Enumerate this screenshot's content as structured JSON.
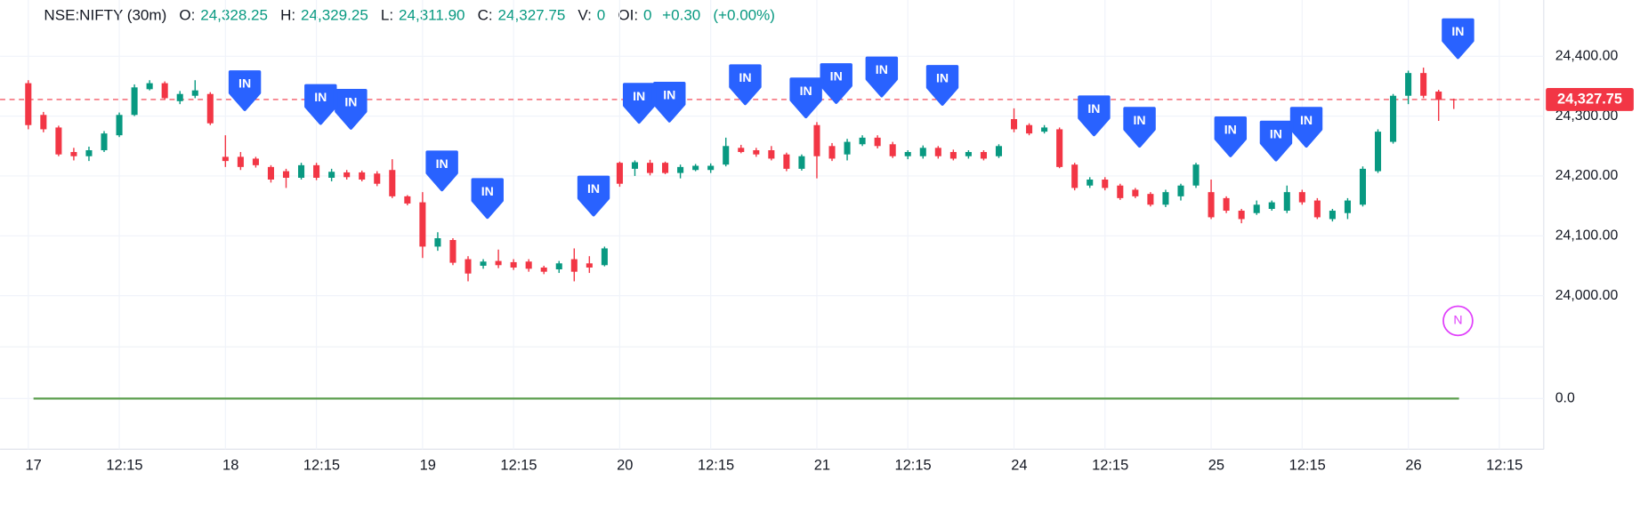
{
  "chart_data": {
    "type": "candlestick",
    "legend": {
      "symbol": "NSE:NIFTY (30m)",
      "fields": [
        {
          "key": "O:",
          "value": "24,328.25"
        },
        {
          "key": "H:",
          "value": "24,329.25"
        },
        {
          "key": "L:",
          "value": "24,311.90"
        },
        {
          "key": "C:",
          "value": "24,327.75"
        },
        {
          "key": "V:",
          "value": "0"
        },
        {
          "key": "OI:",
          "value": "0"
        }
      ],
      "change": "+0.30",
      "change_percent": "(+0.00%)"
    },
    "categories": [
      "17",
      null,
      null,
      null,
      null,
      null,
      "12:15",
      null,
      null,
      null,
      null,
      null,
      null,
      "18",
      null,
      null,
      null,
      null,
      null,
      "12:15",
      null,
      null,
      null,
      null,
      null,
      null,
      "19",
      null,
      null,
      null,
      null,
      null,
      "12:15",
      null,
      null,
      null,
      null,
      null,
      null,
      "20",
      null,
      null,
      null,
      null,
      null,
      "12:15",
      null,
      null,
      null,
      null,
      null,
      null,
      "21",
      null,
      null,
      null,
      null,
      null,
      "12:15",
      null,
      null,
      null,
      null,
      null,
      null,
      "24",
      null,
      null,
      null,
      null,
      null,
      "12:15",
      null,
      null,
      null,
      null,
      null,
      null,
      "25",
      null,
      null,
      null,
      null,
      null,
      "12:15",
      null,
      null,
      null,
      null,
      null,
      null,
      "26",
      null,
      null,
      null,
      null,
      null,
      "12:15"
    ],
    "open": [
      24355,
      24302,
      24281,
      24240,
      24233,
      24243,
      24268,
      24302,
      24345,
      24355,
      24325,
      24334,
      24337,
      24232,
      24232,
      24229,
      24215,
      24208,
      24197,
      24218,
      24197,
      24206,
      24206,
      24204,
      24210,
      24166,
      24156,
      24082,
      24093,
      24061,
      24050,
      24058,
      24056,
      24057,
      24047,
      24044,
      24061,
      24054,
      24051,
      24222,
      24212,
      24222,
      24222,
      24205,
      24210,
      24210,
      24219,
      24247,
      24243,
      24243,
      24236,
      24212,
      24285,
      24250,
      24236,
      24253,
      24264,
      24253,
      24233,
      24233,
      24247,
      24240,
      24233,
      24240,
      24233,
      24295,
      24285,
      24274,
      24278,
      24219,
      24184,
      24194,
      24184,
      24177,
      24170,
      24152,
      24166,
      24184,
      24173,
      24163,
      24142,
      24138,
      24145,
      24142,
      24173,
      24159,
      24128,
      24138,
      24152,
      24208,
      24257,
      24334,
      24372,
      24341,
      24328.25,
      null,
      null,
      null
    ],
    "high": [
      24360,
      24307,
      24284,
      24247,
      24249,
      24275,
      24306,
      24353,
      24360,
      24358,
      24342,
      24360,
      24340,
      24268,
      24240,
      24232,
      24218,
      24212,
      24222,
      24222,
      24212,
      24210,
      24209,
      24208,
      24228,
      24168,
      24173,
      24106,
      24096,
      24066,
      24061,
      24077,
      24061,
      24061,
      24050,
      24058,
      24079,
      24066,
      24082,
      24224,
      24226,
      24227,
      24224,
      24219,
      24220,
      24221,
      24264,
      24252,
      24247,
      24250,
      24239,
      24236,
      24290,
      24255,
      24262,
      24268,
      24268,
      24257,
      24243,
      24251,
      24250,
      24244,
      24243,
      24243,
      24253,
      24313,
      24288,
      24285,
      24281,
      24222,
      24198,
      24198,
      24187,
      24180,
      24173,
      24177,
      24187,
      24222,
      24194,
      24166,
      24145,
      24159,
      24159,
      24184,
      24177,
      24163,
      24145,
      24163,
      24216,
      24278,
      24337,
      24376,
      24381,
      24344,
      24329.25,
      null,
      null,
      null
    ],
    "low": [
      24278,
      24273,
      24233,
      24226,
      24225,
      24240,
      24265,
      24300,
      24343,
      24327,
      24320,
      24330,
      24285,
      24215,
      24210,
      24214,
      24189,
      24180,
      24194,
      24193,
      24191,
      24194,
      24191,
      24183,
      24163,
      24151,
      24063,
      24075,
      24051,
      24024,
      24045,
      24046,
      24043,
      24040,
      24036,
      24038,
      24024,
      24038,
      24049,
      24182,
      24200,
      24201,
      24203,
      24196,
      24208,
      24205,
      24216,
      24238,
      24232,
      24226,
      24208,
      24209,
      24196,
      24225,
      24226,
      24250,
      24246,
      24230,
      24228,
      24229,
      24229,
      24226,
      24229,
      24226,
      24230,
      24273,
      24268,
      24271,
      24213,
      24176,
      24180,
      24176,
      24160,
      24163,
      24149,
      24148,
      24159,
      24180,
      24128,
      24138,
      24121,
      24135,
      24142,
      24138,
      24152,
      24128,
      24124,
      24128,
      24149,
      24205,
      24254,
      24320,
      24330,
      24292,
      24311.9,
      null,
      null,
      null
    ],
    "close": [
      24285,
      24278,
      24236,
      24233,
      24243,
      24271,
      24302,
      24348,
      24355,
      24330,
      24337,
      24343,
      24288,
      24225,
      24215,
      24218,
      24194,
      24197,
      24218,
      24197,
      24207,
      24198,
      24194,
      24187,
      24166,
      24154,
      24082,
      24096,
      24055,
      24037,
      24057,
      24051,
      24047,
      24045,
      24040,
      24054,
      24040,
      24047,
      24079,
      24187,
      24223,
      24205,
      24205,
      24215,
      24217,
      24217,
      24250,
      24240,
      24236,
      24229,
      24212,
      24233,
      24233,
      24229,
      24257,
      24264,
      24250,
      24233,
      24240,
      24247,
      24233,
      24229,
      24240,
      24229,
      24250,
      24278,
      24271,
      24281,
      24215,
      24180,
      24194,
      24180,
      24163,
      24166,
      24152,
      24173,
      24184,
      24219,
      24131,
      24142,
      24128,
      24152,
      24156,
      24173,
      24156,
      24131,
      24142,
      24159,
      24212,
      24274,
      24334,
      24372,
      24334,
      24327,
      24327.75,
      null,
      null,
      null
    ],
    "up_color": "#089981",
    "down_color": "#f23645",
    "ylim": [
      23918,
      24494
    ],
    "yticks": [
      {
        "value": 24000,
        "label": "24,000.00"
      },
      {
        "value": 24100,
        "label": "24,100.00"
      },
      {
        "value": 24200,
        "label": "24,200.00"
      },
      {
        "value": 24300,
        "label": "24,300.00"
      },
      {
        "value": 24400,
        "label": "24,400.00"
      }
    ],
    "current_price": {
      "value": 24327.75,
      "label": "24,327.75",
      "color": "#f23645"
    },
    "markers": [
      {
        "label": "IN",
        "x": 14,
        "price": 24311
      },
      {
        "label": "IN",
        "x": 19,
        "price": 24288
      },
      {
        "label": "IN",
        "x": 21,
        "price": 24280
      },
      {
        "label": "IN",
        "x": 27,
        "price": 24177
      },
      {
        "label": "IN",
        "x": 30,
        "price": 24131
      },
      {
        "label": "IN",
        "x": 37,
        "price": 24135
      },
      {
        "label": "IN",
        "x": 40,
        "price": 24290
      },
      {
        "label": "IN",
        "x": 42,
        "price": 24292
      },
      {
        "label": "IN",
        "x": 47,
        "price": 24321
      },
      {
        "label": "IN",
        "x": 51,
        "price": 24299
      },
      {
        "label": "IN",
        "x": 53,
        "price": 24323
      },
      {
        "label": "IN",
        "x": 56,
        "price": 24334
      },
      {
        "label": "IN",
        "x": 60,
        "price": 24320
      },
      {
        "label": "IN",
        "x": 70,
        "price": 24269
      },
      {
        "label": "IN",
        "x": 73,
        "price": 24250
      },
      {
        "label": "IN",
        "x": 79,
        "price": 24234
      },
      {
        "label": "IN",
        "x": 82,
        "price": 24227
      },
      {
        "label": "IN",
        "x": 84,
        "price": 24250
      },
      {
        "label": "IN",
        "x": 94,
        "price": 24398
      }
    ],
    "marker_color": "#2962ff",
    "note_marker": {
      "label": "N",
      "x": 94,
      "price": 23958,
      "color": "#e040fb"
    },
    "indicator": {
      "value": 0,
      "color": "#5b9e4d"
    },
    "y2lim": [
      -1,
      1
    ],
    "y2ticks": [
      {
        "value": 0,
        "label": "0.0"
      }
    ],
    "grid": true
  }
}
